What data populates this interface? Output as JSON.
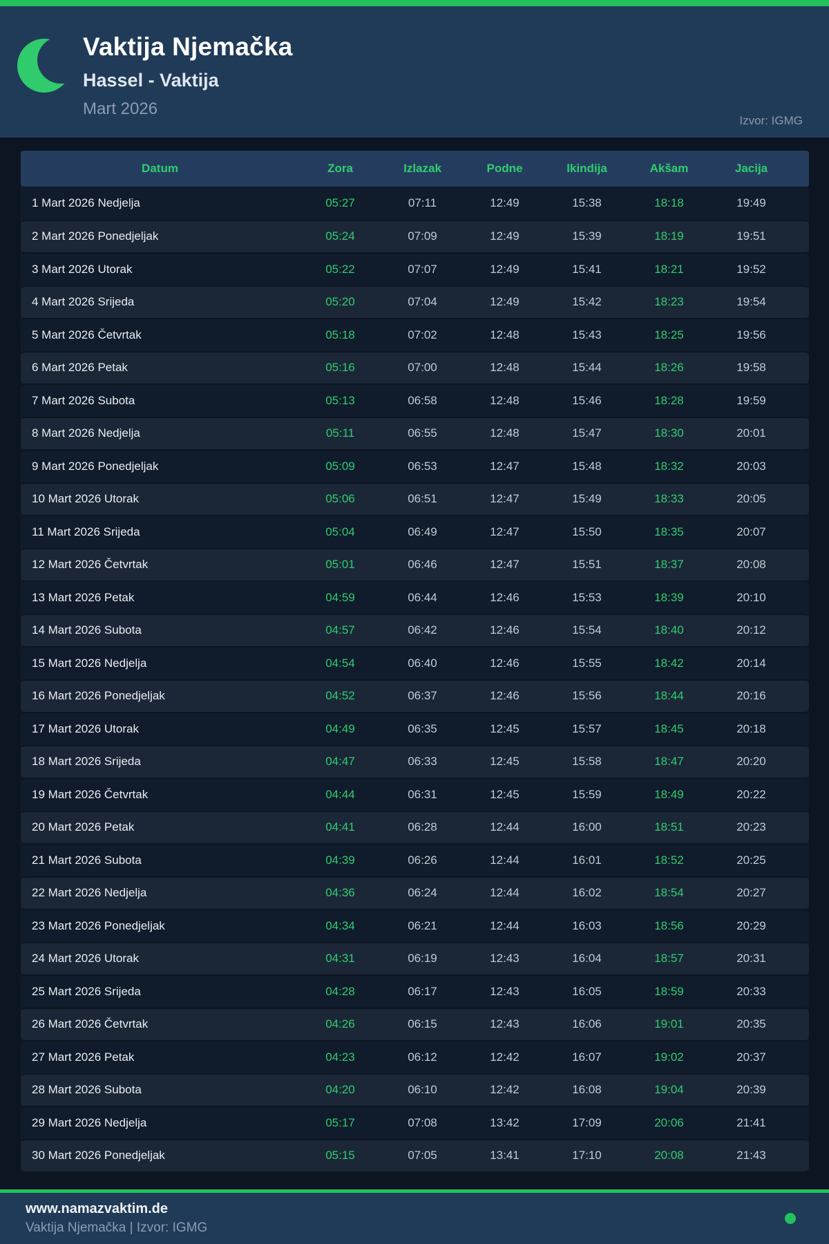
{
  "header": {
    "title": "Vaktija Njemačka",
    "subtitle": "Hassel - Vaktija",
    "period": "Mart 2026",
    "source": "Izvor: IGMG",
    "icon": "crescent-moon-icon"
  },
  "table": {
    "columns": [
      "Datum",
      "Zora",
      "Izlazak",
      "Podne",
      "Ikindija",
      "Akšam",
      "Jacija"
    ],
    "highlighted_columns": [
      "Zora",
      "Akšam"
    ],
    "rows": [
      {
        "datum": "1 Mart 2026 Nedjelja",
        "times": [
          "05:27",
          "07:11",
          "12:49",
          "15:38",
          "18:18",
          "19:49"
        ]
      },
      {
        "datum": "2 Mart 2026 Ponedjeljak",
        "times": [
          "05:24",
          "07:09",
          "12:49",
          "15:39",
          "18:19",
          "19:51"
        ]
      },
      {
        "datum": "3 Mart 2026 Utorak",
        "times": [
          "05:22",
          "07:07",
          "12:49",
          "15:41",
          "18:21",
          "19:52"
        ]
      },
      {
        "datum": "4 Mart 2026 Srijeda",
        "times": [
          "05:20",
          "07:04",
          "12:49",
          "15:42",
          "18:23",
          "19:54"
        ]
      },
      {
        "datum": "5 Mart 2026 Četvrtak",
        "times": [
          "05:18",
          "07:02",
          "12:48",
          "15:43",
          "18:25",
          "19:56"
        ]
      },
      {
        "datum": "6 Mart 2026 Petak",
        "times": [
          "05:16",
          "07:00",
          "12:48",
          "15:44",
          "18:26",
          "19:58"
        ]
      },
      {
        "datum": "7 Mart 2026 Subota",
        "times": [
          "05:13",
          "06:58",
          "12:48",
          "15:46",
          "18:28",
          "19:59"
        ]
      },
      {
        "datum": "8 Mart 2026 Nedjelja",
        "times": [
          "05:11",
          "06:55",
          "12:48",
          "15:47",
          "18:30",
          "20:01"
        ]
      },
      {
        "datum": "9 Mart 2026 Ponedjeljak",
        "times": [
          "05:09",
          "06:53",
          "12:47",
          "15:48",
          "18:32",
          "20:03"
        ]
      },
      {
        "datum": "10 Mart 2026 Utorak",
        "times": [
          "05:06",
          "06:51",
          "12:47",
          "15:49",
          "18:33",
          "20:05"
        ]
      },
      {
        "datum": "11 Mart 2026 Srijeda",
        "times": [
          "05:04",
          "06:49",
          "12:47",
          "15:50",
          "18:35",
          "20:07"
        ]
      },
      {
        "datum": "12 Mart 2026 Četvrtak",
        "times": [
          "05:01",
          "06:46",
          "12:47",
          "15:51",
          "18:37",
          "20:08"
        ]
      },
      {
        "datum": "13 Mart 2026 Petak",
        "times": [
          "04:59",
          "06:44",
          "12:46",
          "15:53",
          "18:39",
          "20:10"
        ]
      },
      {
        "datum": "14 Mart 2026 Subota",
        "times": [
          "04:57",
          "06:42",
          "12:46",
          "15:54",
          "18:40",
          "20:12"
        ]
      },
      {
        "datum": "15 Mart 2026 Nedjelja",
        "times": [
          "04:54",
          "06:40",
          "12:46",
          "15:55",
          "18:42",
          "20:14"
        ]
      },
      {
        "datum": "16 Mart 2026 Ponedjeljak",
        "times": [
          "04:52",
          "06:37",
          "12:46",
          "15:56",
          "18:44",
          "20:16"
        ]
      },
      {
        "datum": "17 Mart 2026 Utorak",
        "times": [
          "04:49",
          "06:35",
          "12:45",
          "15:57",
          "18:45",
          "20:18"
        ]
      },
      {
        "datum": "18 Mart 2026 Srijeda",
        "times": [
          "04:47",
          "06:33",
          "12:45",
          "15:58",
          "18:47",
          "20:20"
        ]
      },
      {
        "datum": "19 Mart 2026 Četvrtak",
        "times": [
          "04:44",
          "06:31",
          "12:45",
          "15:59",
          "18:49",
          "20:22"
        ]
      },
      {
        "datum": "20 Mart 2026 Petak",
        "times": [
          "04:41",
          "06:28",
          "12:44",
          "16:00",
          "18:51",
          "20:23"
        ]
      },
      {
        "datum": "21 Mart 2026 Subota",
        "times": [
          "04:39",
          "06:26",
          "12:44",
          "16:01",
          "18:52",
          "20:25"
        ]
      },
      {
        "datum": "22 Mart 2026 Nedjelja",
        "times": [
          "04:36",
          "06:24",
          "12:44",
          "16:02",
          "18:54",
          "20:27"
        ]
      },
      {
        "datum": "23 Mart 2026 Ponedjeljak",
        "times": [
          "04:34",
          "06:21",
          "12:44",
          "16:03",
          "18:56",
          "20:29"
        ]
      },
      {
        "datum": "24 Mart 2026 Utorak",
        "times": [
          "04:31",
          "06:19",
          "12:43",
          "16:04",
          "18:57",
          "20:31"
        ]
      },
      {
        "datum": "25 Mart 2026 Srijeda",
        "times": [
          "04:28",
          "06:17",
          "12:43",
          "16:05",
          "18:59",
          "20:33"
        ]
      },
      {
        "datum": "26 Mart 2026 Četvrtak",
        "times": [
          "04:26",
          "06:15",
          "12:43",
          "16:06",
          "19:01",
          "20:35"
        ]
      },
      {
        "datum": "27 Mart 2026 Petak",
        "times": [
          "04:23",
          "06:12",
          "12:42",
          "16:07",
          "19:02",
          "20:37"
        ]
      },
      {
        "datum": "28 Mart 2026 Subota",
        "times": [
          "04:20",
          "06:10",
          "12:42",
          "16:08",
          "19:04",
          "20:39"
        ]
      },
      {
        "datum": "29 Mart 2026 Nedjelja",
        "times": [
          "05:17",
          "07:08",
          "13:42",
          "17:09",
          "20:06",
          "21:41"
        ]
      },
      {
        "datum": "30 Mart 2026 Ponedjeljak",
        "times": [
          "05:15",
          "07:05",
          "13:41",
          "17:10",
          "20:08",
          "21:43"
        ]
      }
    ]
  },
  "footer": {
    "website": "www.namazvaktim.de",
    "caption": "Vaktija Njemačka | Izvor: IGMG"
  },
  "colors": {
    "accent_green": "#23c25d",
    "time_green": "#31cd6f",
    "page_background": "#0c1521",
    "hero_background": "#203b58",
    "table_header_background": "#243d5f",
    "row_alternate_background": "#1b2737"
  }
}
